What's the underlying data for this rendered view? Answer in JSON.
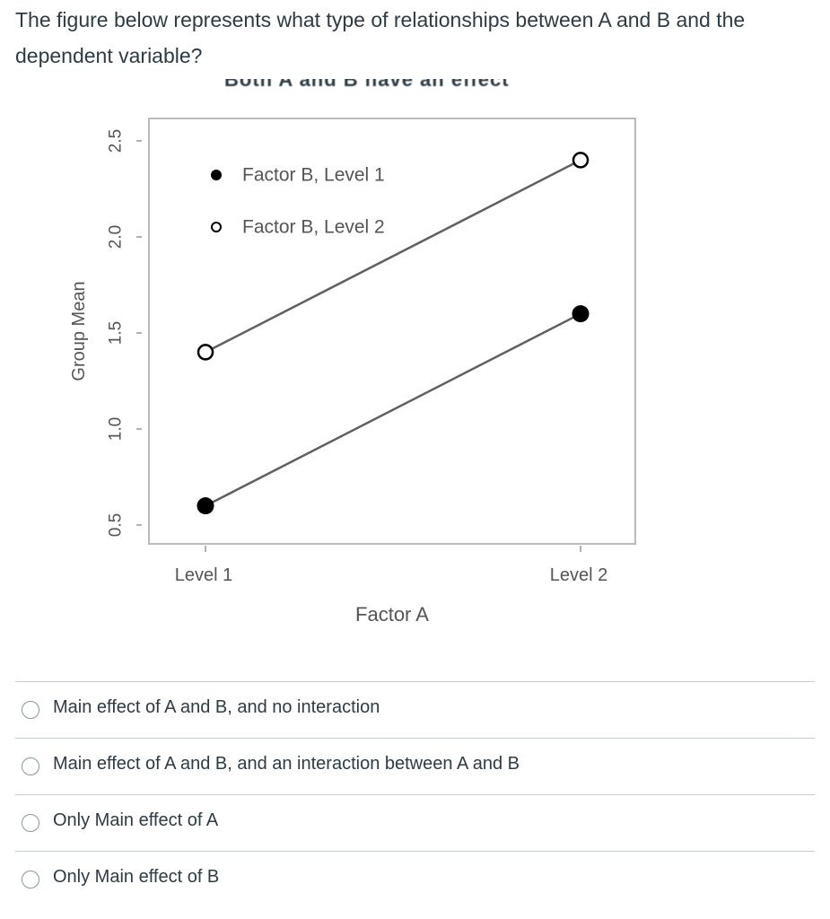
{
  "question": {
    "text": "The figure below represents what type of relationships between A and B and the dependent variable?",
    "partially_visible_text": "Both A and B have an effect"
  },
  "chart_data": {
    "type": "line",
    "x_categories": [
      "Level 1",
      "Level 2"
    ],
    "xlabel": "Factor A",
    "ylabel": "Group Mean",
    "ylim": [
      0.5,
      2.5
    ],
    "yticks": [
      "0.5",
      "1.0",
      "1.5",
      "2.0",
      "2.5"
    ],
    "series": [
      {
        "name": "Factor B, Level 1",
        "marker": "filled",
        "values": [
          0.6,
          1.6
        ]
      },
      {
        "name": "Factor B, Level 2",
        "marker": "open",
        "values": [
          1.4,
          2.4
        ]
      }
    ],
    "legend_position": "top-left",
    "colors": {
      "line": "#606060",
      "marker": "#000000",
      "text": "#555555",
      "frame": "#bbbbbb"
    }
  },
  "answers": [
    {
      "label": "Main effect of A and B, and no interaction"
    },
    {
      "label": "Main effect of A and B, and an interaction between A and B"
    },
    {
      "label": "Only Main effect of A"
    },
    {
      "label": "Only Main effect of B"
    }
  ]
}
